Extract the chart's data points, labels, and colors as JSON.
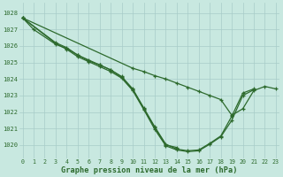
{
  "xlabel": "Graphe pression niveau de la mer (hPa)",
  "x_ticks": [
    0,
    1,
    2,
    3,
    4,
    5,
    6,
    7,
    8,
    9,
    10,
    11,
    12,
    13,
    14,
    15,
    16,
    17,
    18,
    19,
    20,
    21,
    22,
    23
  ],
  "ylim": [
    1019.2,
    1028.6
  ],
  "xlim": [
    -0.3,
    23.3
  ],
  "yticks": [
    1020,
    1021,
    1022,
    1023,
    1024,
    1025,
    1026,
    1027,
    1028
  ],
  "line_color": "#2d6a2d",
  "bg_color": "#c8e8e0",
  "grid_color": "#a8ccc8",
  "series": [
    {
      "x": [
        0,
        1,
        3,
        4,
        5,
        6,
        7,
        8,
        9,
        10,
        11,
        12,
        13,
        14
      ],
      "y": [
        1027.7,
        1027.0,
        1026.1,
        1025.85,
        1025.45,
        1025.1,
        1024.85,
        1024.55,
        1024.1,
        1023.35,
        1022.2,
        1021.05,
        1020.0,
        1019.85
      ]
    },
    {
      "x": [
        0,
        3,
        4,
        5,
        6,
        7,
        8,
        9,
        10,
        11,
        12,
        13,
        14,
        15,
        16,
        17,
        18,
        19,
        20,
        21
      ],
      "y": [
        1027.7,
        1026.2,
        1025.9,
        1025.45,
        1025.15,
        1024.85,
        1024.55,
        1024.15,
        1023.4,
        1022.25,
        1021.1,
        1020.05,
        1019.75,
        1019.65,
        1019.7,
        1020.1,
        1020.55,
        1021.75,
        1023.15,
        1023.4
      ]
    },
    {
      "x": [
        0,
        3,
        4,
        5,
        6,
        7,
        8,
        9,
        10,
        11,
        12,
        13,
        14,
        15,
        16,
        17,
        18,
        19,
        20,
        21
      ],
      "y": [
        1027.7,
        1026.15,
        1025.8,
        1025.35,
        1025.05,
        1024.75,
        1024.45,
        1024.05,
        1023.3,
        1022.15,
        1020.95,
        1019.95,
        1019.7,
        1019.6,
        1019.65,
        1020.05,
        1020.5,
        1021.5,
        1023.0,
        1023.35
      ]
    },
    {
      "x": [
        0,
        10,
        11,
        12,
        13,
        14,
        15,
        16,
        17,
        18,
        19,
        20,
        21,
        22,
        23
      ],
      "y": [
        1027.7,
        1024.65,
        1024.45,
        1024.2,
        1024.0,
        1023.75,
        1023.5,
        1023.25,
        1023.0,
        1022.75,
        1021.8,
        1022.2,
        1023.3,
        1023.55,
        1023.4
      ]
    }
  ]
}
